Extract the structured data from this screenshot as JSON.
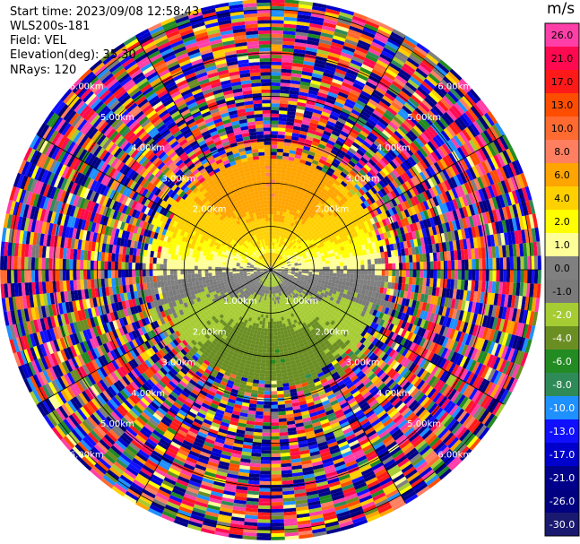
{
  "header": {
    "start_time": "Start time: 2023/09/08 12:58:43",
    "instrument": "WLS200s-181",
    "field": "Field: VEL",
    "elevation": "Elevation(deg): 35.30",
    "nrays": "NRays: 120"
  },
  "chart_data": {
    "type": "heatmap",
    "projection": "polar-ppi",
    "title": "",
    "field": "VEL",
    "units": "m/s",
    "nrays": 120,
    "elevation_deg": 35.3,
    "range_rings_km": [
      1,
      2,
      3,
      4,
      5,
      6
    ],
    "range_ring_labels": [
      {
        "ring": 1,
        "labels": [
          "1.00km",
          "1.00km"
        ]
      },
      {
        "ring": 2,
        "labels": [
          "2.00km",
          "2.00km",
          "2.00km",
          "2.00km"
        ]
      },
      {
        "ring": 3,
        "labels": [
          "3.00km",
          "3.00km",
          "3.00km",
          "3.00km"
        ]
      },
      {
        "ring": 4,
        "labels": [
          "4.00km",
          "4.00km",
          "4.00km",
          "4.00km"
        ]
      },
      {
        "ring": 5,
        "labels": [
          "5.00km",
          "5.00km",
          "5.00km",
          "5.00km"
        ]
      },
      {
        "ring": 6,
        "labels": [
          "6.00km",
          "6.00km",
          "6.00km",
          "6.00km"
        ]
      }
    ],
    "max_range_km": 6.2,
    "valid_data_range_km": 2.5,
    "velocity_pattern": {
      "positive_sector_deg": [
        270,
        90
      ],
      "positive_max_ms": 6.0,
      "negative_sector_deg": [
        90,
        270
      ],
      "negative_min_ms": -6.0
    },
    "colorbar": {
      "title": "m/s",
      "tick_labels": [
        "26.0",
        "21.0",
        "17.0",
        "13.0",
        "10.0",
        "8.0",
        "6.0",
        "4.0",
        "2.0",
        "1.0",
        "0.0",
        "-1.0",
        "-2.0",
        "-4.0",
        "-6.0",
        "-8.0",
        "-10.0",
        "-13.0",
        "-17.0",
        "-21.0",
        "-26.0",
        "-30.0"
      ],
      "colors": [
        "#ff3fa8",
        "#ff0a50",
        "#ff1a1a",
        "#ff4d00",
        "#ff6a30",
        "#ff7f60",
        "#ffa500",
        "#ffd000",
        "#ffff00",
        "#ffff99",
        "#808080",
        "#7a7a7a",
        "#a6cc33",
        "#6b8e23",
        "#228b22",
        "#2e8b57",
        "#1e90ff",
        "#1010ff",
        "#0000cd",
        "#00008b",
        "#000080",
        "#191970"
      ]
    }
  }
}
